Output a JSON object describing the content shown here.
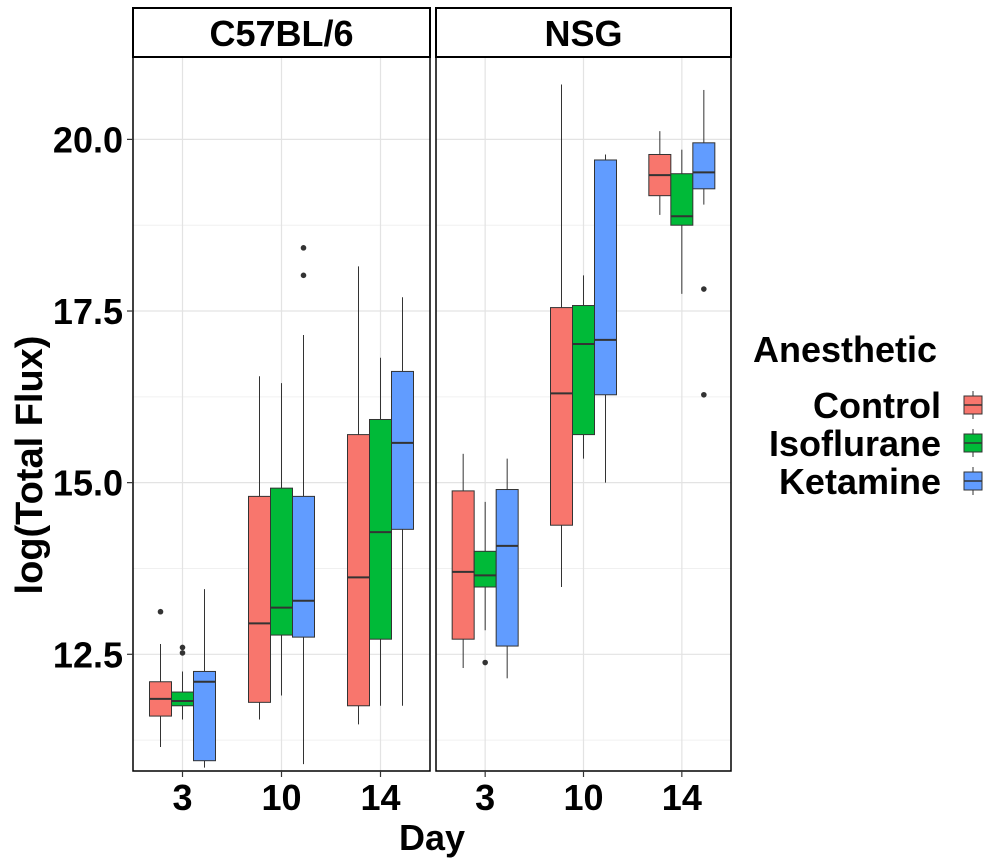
{
  "chart_data": {
    "type": "boxplot",
    "xlabel": "Day",
    "ylabel": "log(Total Flux)",
    "ylim": [
      10.8,
      21.2
    ],
    "yticks": [
      12.5,
      15.0,
      17.5,
      20.0
    ],
    "ytick_labels": [
      "12.5",
      "15.0",
      "17.5",
      "20.0"
    ],
    "categories": [
      "3",
      "10",
      "14"
    ],
    "grid": true,
    "legend": {
      "title": "Anesthetic",
      "placement": "right",
      "entries": [
        "Control",
        "Isoflurane",
        "Ketamine"
      ]
    },
    "colors": {
      "Control": "#F8766D",
      "Isoflurane": "#00BA38",
      "Ketamine": "#619CFF"
    },
    "panels": [
      {
        "strip": "C57BL/6",
        "groups": [
          {
            "day": "3",
            "series": "Control",
            "whisker_low": 11.15,
            "q1": 11.6,
            "median": 11.85,
            "q3": 12.1,
            "whisker_high": 12.65,
            "outliers": [
              13.12
            ]
          },
          {
            "day": "3",
            "series": "Isoflurane",
            "whisker_low": 11.55,
            "q1": 11.75,
            "median": 11.82,
            "q3": 11.95,
            "whisker_high": 12.25,
            "outliers": [
              12.52,
              12.6
            ]
          },
          {
            "day": "3",
            "series": "Ketamine",
            "whisker_low": 10.85,
            "q1": 10.95,
            "median": 12.1,
            "q3": 12.25,
            "whisker_high": 13.45,
            "outliers": []
          },
          {
            "day": "10",
            "series": "Control",
            "whisker_low": 11.55,
            "q1": 11.8,
            "median": 12.95,
            "q3": 14.8,
            "whisker_high": 16.55,
            "outliers": []
          },
          {
            "day": "10",
            "series": "Isoflurane",
            "whisker_low": 11.9,
            "q1": 12.78,
            "median": 13.18,
            "q3": 14.92,
            "whisker_high": 16.45,
            "outliers": []
          },
          {
            "day": "10",
            "series": "Ketamine",
            "whisker_low": 10.9,
            "q1": 12.75,
            "median": 13.28,
            "q3": 14.8,
            "whisker_high": 17.15,
            "outliers": [
              18.02,
              18.42
            ]
          },
          {
            "day": "14",
            "series": "Control",
            "whisker_low": 11.48,
            "q1": 11.75,
            "median": 13.62,
            "q3": 15.7,
            "whisker_high": 18.15,
            "outliers": []
          },
          {
            "day": "14",
            "series": "Isoflurane",
            "whisker_low": 11.75,
            "q1": 12.72,
            "median": 14.28,
            "q3": 15.92,
            "whisker_high": 16.82,
            "outliers": []
          },
          {
            "day": "14",
            "series": "Ketamine",
            "whisker_low": 11.75,
            "q1": 14.32,
            "median": 15.58,
            "q3": 16.62,
            "whisker_high": 17.7,
            "outliers": []
          }
        ]
      },
      {
        "strip": "NSG",
        "groups": [
          {
            "day": "3",
            "series": "Control",
            "whisker_low": 12.3,
            "q1": 12.72,
            "median": 13.7,
            "q3": 14.88,
            "whisker_high": 15.42,
            "outliers": []
          },
          {
            "day": "3",
            "series": "Isoflurane",
            "whisker_low": 12.85,
            "q1": 13.48,
            "median": 13.65,
            "q3": 14.0,
            "whisker_high": 14.72,
            "outliers": [
              12.38
            ]
          },
          {
            "day": "3",
            "series": "Ketamine",
            "whisker_low": 12.15,
            "q1": 12.62,
            "median": 14.08,
            "q3": 14.9,
            "whisker_high": 15.35,
            "outliers": []
          },
          {
            "day": "10",
            "series": "Control",
            "whisker_low": 13.48,
            "q1": 14.38,
            "median": 16.3,
            "q3": 17.55,
            "whisker_high": 20.8,
            "outliers": []
          },
          {
            "day": "10",
            "series": "Isoflurane",
            "whisker_low": 15.35,
            "q1": 15.7,
            "median": 17.02,
            "q3": 17.58,
            "whisker_high": 18.02,
            "outliers": []
          },
          {
            "day": "10",
            "series": "Ketamine",
            "whisker_low": 15.0,
            "q1": 16.28,
            "median": 17.08,
            "q3": 19.7,
            "whisker_high": 19.78,
            "outliers": []
          },
          {
            "day": "14",
            "series": "Control",
            "whisker_low": 18.9,
            "q1": 19.18,
            "median": 19.48,
            "q3": 19.78,
            "whisker_high": 20.12,
            "outliers": []
          },
          {
            "day": "14",
            "series": "Isoflurane",
            "whisker_low": 17.75,
            "q1": 18.75,
            "median": 18.88,
            "q3": 19.5,
            "whisker_high": 19.85,
            "outliers": []
          },
          {
            "day": "14",
            "series": "Ketamine",
            "whisker_low": 19.05,
            "q1": 19.28,
            "median": 19.52,
            "q3": 19.95,
            "whisker_high": 20.72,
            "outliers": [
              17.82,
              16.28
            ]
          }
        ]
      }
    ]
  }
}
